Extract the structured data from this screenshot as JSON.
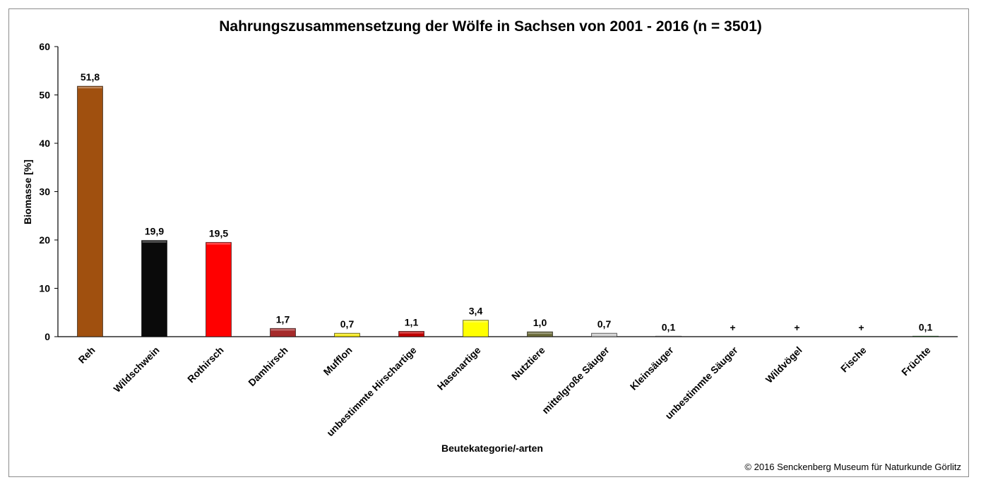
{
  "chart_data": {
    "type": "bar",
    "title": "Nahrungszusammensetzung der Wölfe in Sachsen von 2001 - 2016 (n = 3501)",
    "xlabel": "Beutekategorie/-arten",
    "ylabel": "Biomasse [%]",
    "ylim": [
      0,
      60
    ],
    "yticks": [
      "0",
      "10",
      "20",
      "30",
      "40",
      "50",
      "60"
    ],
    "categories": [
      "Reh",
      "Wildschwein",
      "Rothirsch",
      "Damhirsch",
      "Mufflon",
      "unbestimmte Hirschartige",
      "Hasenartige",
      "Nutztiere",
      "mittelgroße Säuger",
      "Kleinsäuger",
      "unbestimmte Säuger",
      "Wildvögel",
      "Fische",
      "Früchte"
    ],
    "values": [
      51.8,
      19.9,
      19.5,
      1.7,
      0.7,
      1.1,
      3.4,
      1.0,
      0.7,
      0.1,
      0,
      0,
      0,
      0.1
    ],
    "labels": [
      "51,8",
      "19,9",
      "19,5",
      "1,7",
      "0,7",
      "1,1",
      "3,4",
      "1,0",
      "0,7",
      "0,1",
      "+",
      "+",
      "+",
      "0,1"
    ],
    "colors": [
      "#a0500f",
      "#0a0a0a",
      "#ff0000",
      "#a52a2a",
      "#f5e800",
      "#c00000",
      "#ffff00",
      "#6b6b3a",
      "#c8c8c8",
      "#a0a0a0",
      "#ffffff",
      "#ffffff",
      "#ffffff",
      "#1e8c1e"
    ],
    "grid": false,
    "legend": "none"
  },
  "credit": "© 2016 Senckenberg Museum für Naturkunde Görlitz"
}
